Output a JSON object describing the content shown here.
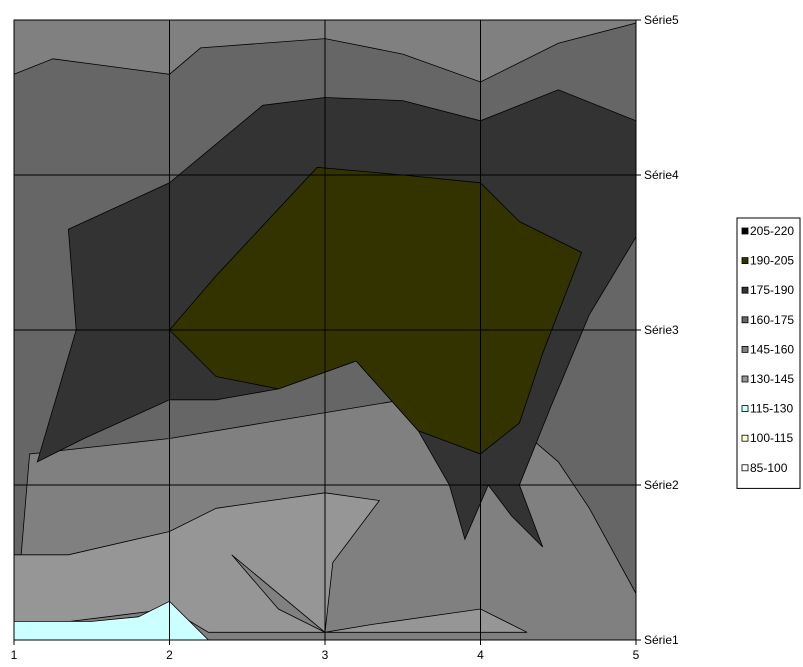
{
  "chart_data": {
    "type": "contour",
    "x": [
      1,
      2,
      3,
      4,
      5
    ],
    "x_tick_labels": [
      "1",
      "2",
      "3",
      "4",
      "5"
    ],
    "series_labels": [
      "Série1",
      "Série2",
      "Série3",
      "Série4",
      "Série5"
    ],
    "grid": true,
    "legend": "right",
    "bands": [
      {
        "label": "205-220",
        "color": "#000000"
      },
      {
        "label": "190-205",
        "color": "#333300"
      },
      {
        "label": "175-190",
        "color": "#333333"
      },
      {
        "label": "160-175",
        "color": "#666666"
      },
      {
        "label": "145-160",
        "color": "#808080"
      },
      {
        "label": "130-145",
        "color": "#969696"
      },
      {
        "label": "115-130",
        "color": "#ccffff"
      },
      {
        "label": "100-115",
        "color": "#ffffcc"
      },
      {
        "label": "85-100",
        "color": "#ffffff"
      }
    ],
    "regions": [
      {
        "band": "145-160",
        "points": [
          [
            1,
            5
          ],
          [
            5,
            5
          ],
          [
            5,
            1
          ],
          [
            1,
            1
          ]
        ]
      },
      {
        "band": "160-175",
        "points": [
          [
            1,
            4.65
          ],
          [
            1.25,
            4.75
          ],
          [
            2,
            4.65
          ],
          [
            2.2,
            4.82
          ],
          [
            3,
            4.88
          ],
          [
            3.5,
            4.78
          ],
          [
            4,
            4.6
          ],
          [
            4.5,
            4.85
          ],
          [
            5,
            4.98
          ],
          [
            5,
            1.3
          ],
          [
            4.7,
            1.85
          ],
          [
            4.5,
            2.15
          ],
          [
            4.15,
            2.45
          ],
          [
            3.5,
            2.55
          ],
          [
            2.6,
            2.4
          ],
          [
            2,
            2.3
          ],
          [
            1.1,
            2.2
          ],
          [
            1,
            1
          ]
        ]
      },
      {
        "band": "175-190",
        "points": [
          [
            1.35,
            3.65
          ],
          [
            2,
            3.95
          ],
          [
            2.6,
            4.45
          ],
          [
            3,
            4.5
          ],
          [
            3.5,
            4.48
          ],
          [
            4,
            4.35
          ],
          [
            4.5,
            4.55
          ],
          [
            5,
            4.35
          ],
          [
            5,
            3.6
          ],
          [
            4.7,
            3.1
          ],
          [
            4.45,
            2.5
          ],
          [
            4.25,
            2.0
          ],
          [
            4.4,
            1.6
          ],
          [
            4.2,
            1.8
          ],
          [
            4.05,
            2.0
          ],
          [
            3.9,
            1.65
          ],
          [
            3.8,
            2.0
          ],
          [
            3.6,
            2.35
          ],
          [
            3.2,
            2.8
          ],
          [
            2.7,
            2.62
          ],
          [
            2.3,
            2.55
          ],
          [
            2,
            2.55
          ],
          [
            1.45,
            2.3
          ],
          [
            1.15,
            2.15
          ],
          [
            1.4,
            3.0
          ]
        ]
      },
      {
        "band": "190-205",
        "points": [
          [
            2,
            3
          ],
          [
            2.3,
            3.35
          ],
          [
            2.95,
            4.05
          ],
          [
            3.5,
            4.0
          ],
          [
            4,
            3.95
          ],
          [
            4.25,
            3.7
          ],
          [
            4.65,
            3.5
          ],
          [
            4.4,
            2.85
          ],
          [
            4.25,
            2.4
          ],
          [
            4,
            2.2
          ],
          [
            3.6,
            2.35
          ],
          [
            3.2,
            2.8
          ],
          [
            2.7,
            2.62
          ],
          [
            2.3,
            2.7
          ],
          [
            2,
            3
          ]
        ]
      },
      {
        "band": "130-145",
        "points": [
          [
            1,
            1
          ],
          [
            1,
            1.55
          ],
          [
            1.35,
            1.55
          ],
          [
            2,
            1.7
          ],
          [
            2.3,
            1.85
          ],
          [
            3,
            1.95
          ],
          [
            3.35,
            1.9
          ],
          [
            3.05,
            1.5
          ],
          [
            3,
            1.05
          ],
          [
            2.4,
            1.55
          ],
          [
            2.7,
            1.2
          ],
          [
            3,
            1.05
          ],
          [
            3.3,
            1.1
          ],
          [
            4,
            1.2
          ],
          [
            4.3,
            1.05
          ],
          [
            3.8,
            1.05
          ],
          [
            3.4,
            1.05
          ],
          [
            2.9,
            1.05
          ],
          [
            2.25,
            1.05
          ],
          [
            2,
            1.2
          ],
          [
            1.6,
            1.15
          ],
          [
            1.2,
            1.1
          ],
          [
            1,
            1
          ]
        ]
      },
      {
        "band": "115-130",
        "points": [
          [
            1,
            1
          ],
          [
            1,
            1.12
          ],
          [
            1.5,
            1.12
          ],
          [
            1.8,
            1.15
          ],
          [
            2,
            1.25
          ],
          [
            2.25,
            1.0
          ]
        ]
      }
    ]
  }
}
